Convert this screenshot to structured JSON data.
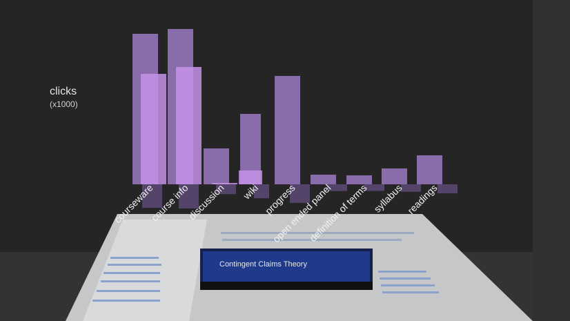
{
  "chart_data": {
    "type": "bar",
    "ylabel": "clicks",
    "yunit": "(x1000)",
    "categories": [
      "courseware",
      "course info",
      "discussion",
      "wiki",
      "progress",
      "open ended panel",
      "definition of terms",
      "syllabus",
      "readings"
    ],
    "series": [
      {
        "values": [
          218,
          225,
          52,
          102,
          157,
          14,
          13,
          23,
          42
        ]
      },
      {
        "values": [
          160,
          170,
          2,
          20,
          0,
          0,
          0,
          0,
          0
        ]
      }
    ],
    "colors": {
      "bar": "#a07cc8",
      "bar_highlight": "#c692e8"
    }
  },
  "video": {
    "title": "Contingent Claims Theory"
  }
}
